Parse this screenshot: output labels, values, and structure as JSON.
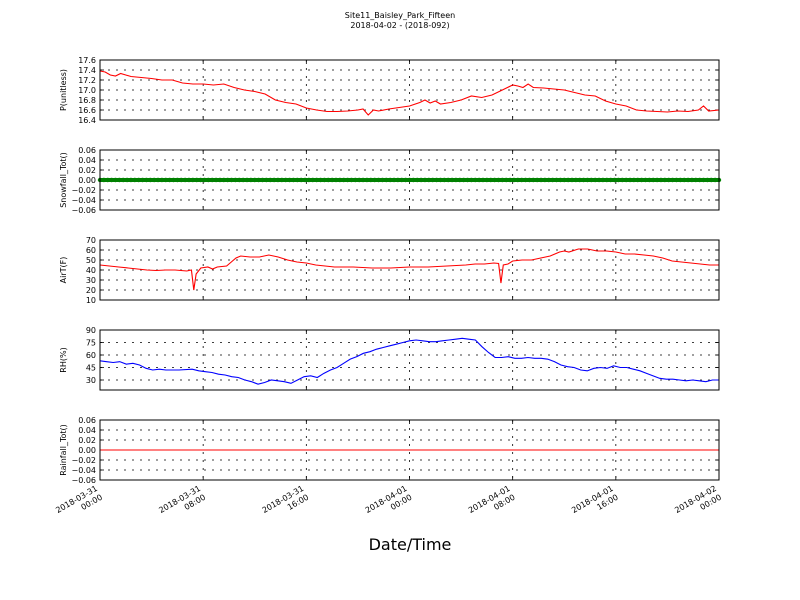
{
  "title": "Site11_Baisley_Park_Fifteen",
  "subtitle": "2018-04-02 - (2018-092)",
  "xlabel": "Date/Time",
  "x_ticks": [
    {
      "x": 0,
      "line1": "2018-03-31",
      "line2": "00:00"
    },
    {
      "x": 8,
      "line1": "2018-03-31",
      "line2": "08:00"
    },
    {
      "x": 16,
      "line1": "2018-03-31",
      "line2": "16:00"
    },
    {
      "x": 24,
      "line1": "2018-04-01",
      "line2": "00:00"
    },
    {
      "x": 32,
      "line1": "2018-04-01",
      "line2": "08:00"
    },
    {
      "x": 40,
      "line1": "2018-04-01",
      "line2": "16:00"
    },
    {
      "x": 48,
      "line1": "2018-04-02",
      "line2": "00:00"
    }
  ],
  "colors": {
    "red": "#ff0000",
    "green": "#008000",
    "blue": "#0000ff"
  },
  "chart_data": [
    {
      "type": "line",
      "ylabel": "P(unitless)",
      "ylim": [
        16.4,
        17.6
      ],
      "yticks": [
        {
          "v": 16.4,
          "label": "16.4"
        },
        {
          "v": 16.6,
          "label": "16.6"
        },
        {
          "v": 16.8,
          "label": "16.8"
        },
        {
          "v": 17.0,
          "label": "17.0"
        },
        {
          "v": 17.2,
          "label": "17.2"
        },
        {
          "v": 17.4,
          "label": "17.4"
        },
        {
          "v": 17.6,
          "label": "17.6"
        }
      ],
      "grid": true,
      "series": [
        {
          "color": "#ff0000",
          "points": [
            [
              0,
              17.38
            ],
            [
              0.5,
              17.36
            ],
            [
              1,
              17.3
            ],
            [
              1.5,
              17.28
            ],
            [
              2,
              17.33
            ],
            [
              2.5,
              17.3
            ],
            [
              3,
              17.27
            ],
            [
              4,
              17.25
            ],
            [
              5,
              17.23
            ],
            [
              6,
              17.2
            ],
            [
              7,
              17.2
            ],
            [
              8,
              17.14
            ],
            [
              9,
              17.12
            ],
            [
              10,
              17.12
            ],
            [
              11,
              17.1
            ],
            [
              12,
              17.12
            ],
            [
              13,
              17.05
            ],
            [
              14,
              17.0
            ],
            [
              15,
              16.97
            ],
            [
              16,
              16.92
            ],
            [
              17,
              16.8
            ],
            [
              18,
              16.75
            ],
            [
              19,
              16.72
            ],
            [
              20,
              16.64
            ],
            [
              21,
              16.6
            ],
            [
              22,
              16.57
            ],
            [
              23,
              16.57
            ],
            [
              24,
              16.58
            ],
            [
              25,
              16.6
            ],
            [
              25.5,
              16.62
            ],
            [
              26,
              16.5
            ],
            [
              26.5,
              16.6
            ],
            [
              27,
              16.58
            ],
            [
              28,
              16.62
            ],
            [
              29,
              16.65
            ],
            [
              30,
              16.68
            ],
            [
              31,
              16.75
            ],
            [
              31.5,
              16.8
            ],
            [
              32,
              16.74
            ],
            [
              32.5,
              16.78
            ],
            [
              33,
              16.72
            ],
            [
              34,
              16.75
            ],
            [
              35,
              16.8
            ],
            [
              36,
              16.88
            ],
            [
              37,
              16.85
            ],
            [
              38,
              16.9
            ],
            [
              39,
              17.0
            ],
            [
              40,
              17.1
            ],
            [
              40.5,
              17.08
            ],
            [
              41,
              17.05
            ],
            [
              41.5,
              17.12
            ],
            [
              42,
              17.05
            ],
            [
              43,
              17.04
            ],
            [
              44,
              17.02
            ],
            [
              45,
              17.0
            ],
            [
              46,
              16.95
            ],
            [
              47,
              16.9
            ],
            [
              48,
              16.88
            ],
            [
              49,
              16.78
            ],
            [
              50,
              16.72
            ],
            [
              51,
              16.68
            ],
            [
              52,
              16.6
            ],
            [
              53,
              16.58
            ],
            [
              54,
              16.57
            ],
            [
              55,
              16.56
            ],
            [
              56,
              16.58
            ],
            [
              57,
              16.57
            ],
            [
              58,
              16.6
            ],
            [
              58.5,
              16.68
            ],
            [
              59,
              16.58
            ],
            [
              60,
              16.6
            ]
          ]
        }
      ]
    },
    {
      "type": "line",
      "ylabel": "Snowfall_Tot()",
      "ylim": [
        -0.06,
        0.06
      ],
      "yticks": [
        {
          "v": -0.06,
          "label": "−0.06"
        },
        {
          "v": -0.04,
          "label": "−0.04"
        },
        {
          "v": -0.02,
          "label": "−0.02"
        },
        {
          "v": 0.0,
          "label": "0.00"
        },
        {
          "v": 0.02,
          "label": "0.02"
        },
        {
          "v": 0.04,
          "label": "0.04"
        },
        {
          "v": 0.06,
          "label": "0.06"
        }
      ],
      "grid": true,
      "series": [
        {
          "color": "#008000",
          "points": [
            [
              0,
              0
            ],
            [
              60,
              0
            ]
          ],
          "markers": true
        }
      ]
    },
    {
      "type": "line",
      "ylabel": "AirT(F)",
      "ylim": [
        10,
        70
      ],
      "yticks": [
        {
          "v": 10,
          "label": "10"
        },
        {
          "v": 20,
          "label": "20"
        },
        {
          "v": 30,
          "label": "30"
        },
        {
          "v": 40,
          "label": "40"
        },
        {
          "v": 50,
          "label": "50"
        },
        {
          "v": 60,
          "label": "60"
        },
        {
          "v": 70,
          "label": "70"
        }
      ],
      "grid": true,
      "series": [
        {
          "color": "#ff0000",
          "points": [
            [
              0,
              45
            ],
            [
              2,
              44
            ],
            [
              4,
              43
            ],
            [
              6,
              42
            ],
            [
              8,
              41
            ],
            [
              10,
              40
            ],
            [
              12,
              39.5
            ],
            [
              14,
              40
            ],
            [
              16,
              40
            ],
            [
              18.5,
              39
            ],
            [
              19.5,
              40
            ],
            [
              20,
              20
            ],
            [
              20.5,
              36
            ],
            [
              21.5,
              42
            ],
            [
              23,
              43
            ],
            [
              24,
              41
            ],
            [
              25,
              43
            ],
            [
              27,
              44
            ],
            [
              28,
              48
            ],
            [
              29,
              52
            ],
            [
              30,
              54
            ],
            [
              32,
              53
            ],
            [
              34,
              53
            ],
            [
              36,
              55
            ],
            [
              38,
              53
            ],
            [
              40,
              50
            ],
            [
              42,
              48
            ],
            [
              44,
              47
            ],
            [
              46,
              45
            ],
            [
              48,
              44
            ],
            [
              50,
              43
            ],
            [
              54,
              43
            ],
            [
              58,
              42
            ],
            [
              62,
              42
            ],
            [
              66,
              43
            ],
            [
              70,
              43
            ],
            [
              74,
              44
            ],
            [
              78,
              45
            ],
            [
              80,
              46
            ],
            [
              82,
              46
            ],
            [
              84,
              47
            ],
            [
              85,
              46.5
            ],
            [
              85.5,
              27
            ],
            [
              86,
              45
            ],
            [
              87,
              46
            ],
            [
              88,
              49
            ],
            [
              90,
              50
            ],
            [
              92,
              50
            ],
            [
              94,
              52
            ],
            [
              96,
              54
            ],
            [
              98,
              58
            ],
            [
              99,
              59
            ],
            [
              100,
              58
            ],
            [
              102,
              61
            ],
            [
              104,
              61
            ],
            [
              106,
              59
            ],
            [
              108,
              59
            ],
            [
              110,
              58
            ],
            [
              112,
              56
            ],
            [
              114,
              56
            ],
            [
              116,
              55
            ],
            [
              118,
              54
            ],
            [
              120,
              52
            ],
            [
              122,
              49
            ],
            [
              124,
              48
            ],
            [
              126,
              47
            ],
            [
              128,
              46
            ],
            [
              130,
              45
            ],
            [
              132,
              45
            ]
          ]
        }
      ]
    },
    {
      "type": "line",
      "ylabel": "RH(%)",
      "ylim": [
        18,
        90
      ],
      "yticks": [
        {
          "v": 30,
          "label": "30"
        },
        {
          "v": 45,
          "label": "45"
        },
        {
          "v": 60,
          "label": "60"
        },
        {
          "v": 75,
          "label": "75"
        },
        {
          "v": 90,
          "label": "90"
        }
      ],
      "grid": true,
      "series": [
        {
          "color": "#0000ff",
          "points": [
            [
              0,
              53
            ],
            [
              1,
              52
            ],
            [
              2,
              51
            ],
            [
              3,
              52
            ],
            [
              4,
              49
            ],
            [
              5,
              50
            ],
            [
              6,
              48
            ],
            [
              7,
              44
            ],
            [
              8,
              42
            ],
            [
              9,
              43
            ],
            [
              10,
              42
            ],
            [
              12,
              42
            ],
            [
              14,
              43
            ],
            [
              15,
              41
            ],
            [
              16,
              40
            ],
            [
              17,
              39
            ],
            [
              18,
              37
            ],
            [
              19,
              36
            ],
            [
              20,
              34
            ],
            [
              21,
              33
            ],
            [
              22,
              30
            ],
            [
              23,
              28
            ],
            [
              24,
              25
            ],
            [
              25,
              27
            ],
            [
              26,
              30
            ],
            [
              27,
              29
            ],
            [
              28,
              28
            ],
            [
              29,
              26
            ],
            [
              30,
              30
            ],
            [
              31,
              34
            ],
            [
              32,
              35
            ],
            [
              33,
              33
            ],
            [
              34,
              38
            ],
            [
              35,
              42
            ],
            [
              36,
              45
            ],
            [
              37,
              50
            ],
            [
              38,
              55
            ],
            [
              39,
              58
            ],
            [
              40,
              62
            ],
            [
              41,
              64
            ],
            [
              42,
              67
            ],
            [
              43,
              69
            ],
            [
              44,
              71
            ],
            [
              45,
              73
            ],
            [
              46,
              75
            ],
            [
              47,
              77
            ],
            [
              48,
              78
            ],
            [
              49,
              77
            ],
            [
              50,
              76
            ],
            [
              51,
              76
            ],
            [
              52,
              77
            ],
            [
              53,
              78
            ],
            [
              54,
              79
            ],
            [
              55,
              80
            ],
            [
              56,
              79
            ],
            [
              57,
              78
            ],
            [
              58,
              70
            ],
            [
              59,
              63
            ],
            [
              60,
              57
            ],
            [
              61,
              57
            ],
            [
              62,
              58
            ],
            [
              63,
              56
            ],
            [
              64,
              56
            ],
            [
              65,
              57
            ],
            [
              66,
              56
            ],
            [
              67,
              56
            ],
            [
              68,
              55
            ],
            [
              69,
              52
            ],
            [
              70,
              48
            ],
            [
              71,
              46
            ],
            [
              72,
              45
            ],
            [
              73,
              42
            ],
            [
              74,
              41
            ],
            [
              75,
              44
            ],
            [
              76,
              45
            ],
            [
              77,
              44
            ],
            [
              78,
              47
            ],
            [
              79,
              45
            ],
            [
              80,
              45
            ],
            [
              81,
              43
            ],
            [
              82,
              41
            ],
            [
              83,
              38
            ],
            [
              84,
              35
            ],
            [
              85,
              32
            ],
            [
              86,
              31
            ],
            [
              87,
              31
            ],
            [
              88,
              30
            ],
            [
              89,
              29
            ],
            [
              90,
              30
            ],
            [
              91,
              29
            ],
            [
              92,
              28
            ],
            [
              93,
              30
            ],
            [
              94,
              30
            ]
          ]
        }
      ]
    },
    {
      "type": "line",
      "ylabel": "Rainfall_Tot()",
      "ylim": [
        -0.06,
        0.06
      ],
      "yticks": [
        {
          "v": -0.06,
          "label": "−0.06"
        },
        {
          "v": -0.04,
          "label": "−0.04"
        },
        {
          "v": -0.02,
          "label": "−0.02"
        },
        {
          "v": 0.0,
          "label": "0.00"
        },
        {
          "v": 0.02,
          "label": "0.02"
        },
        {
          "v": 0.04,
          "label": "0.04"
        },
        {
          "v": 0.06,
          "label": "0.06"
        }
      ],
      "grid": true,
      "series": [
        {
          "color": "#ff0000",
          "points": [
            [
              0,
              0
            ],
            [
              60,
              0
            ]
          ]
        }
      ]
    }
  ]
}
